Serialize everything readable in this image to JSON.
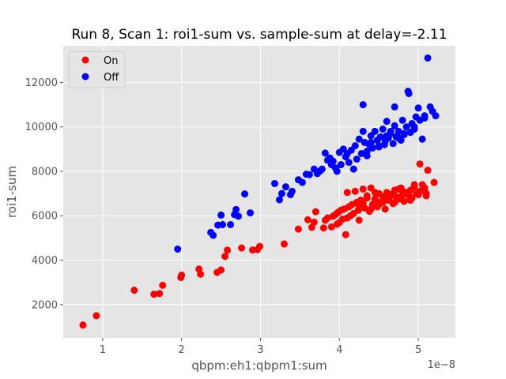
{
  "chart_data": {
    "type": "scatter",
    "title": "Run 8, Scan 1: roi1-sum vs. sample-sum at delay=-2.11",
    "xlabel": "qbpm:eh1:qbpm1:sum",
    "ylabel": "roi1-sum",
    "x_offset_text": "1e−8",
    "x_scale": 1e-08,
    "xlim": [
      0.5,
      5.47
    ],
    "ylim": [
      500,
      13650
    ],
    "xticks": [
      1,
      2,
      3,
      4,
      5
    ],
    "xtick_labels": [
      "1",
      "2",
      "3",
      "4",
      "5"
    ],
    "yticks": [
      2000,
      4000,
      6000,
      8000,
      10000,
      12000
    ],
    "ytick_labels": [
      "2000",
      "4000",
      "6000",
      "8000",
      "10000",
      "12000"
    ],
    "grid": true,
    "legend_position": "top-left",
    "colors": {
      "plot_bg": "#e5e5e5",
      "grid": "#ffffff",
      "on": "#ff0000",
      "off": "#0000ff"
    },
    "series": [
      {
        "name": "On",
        "color": "#ff0000",
        "x": [
          0.75,
          0.92,
          1.4,
          1.65,
          1.72,
          1.76,
          1.99,
          2.0,
          2.22,
          2.24,
          2.45,
          2.5,
          2.55,
          2.58,
          2.76,
          2.9,
          2.96,
          2.99,
          3.3,
          3.48,
          3.6,
          3.65,
          3.68,
          3.7,
          3.8,
          3.82,
          3.85,
          3.9,
          3.92,
          3.95,
          3.97,
          3.98,
          4.0,
          4.02,
          4.04,
          4.06,
          4.08,
          4.1,
          4.1,
          4.12,
          4.14,
          4.16,
          4.18,
          4.2,
          4.22,
          4.24,
          4.25,
          4.27,
          4.3,
          4.32,
          4.35,
          4.38,
          4.4,
          4.42,
          4.45,
          4.48,
          4.5,
          4.52,
          4.55,
          4.58,
          4.6,
          4.62,
          4.65,
          4.68,
          4.7,
          4.72,
          4.75,
          4.78,
          4.8,
          4.82,
          4.85,
          4.88,
          4.9,
          4.92,
          4.95,
          4.98,
          5.0,
          5.02,
          5.05,
          5.08,
          5.1,
          5.12,
          5.2,
          5.02,
          5.1,
          4.5,
          4.6,
          4.7,
          4.8,
          4.9,
          4.3,
          4.4,
          4.55,
          4.65,
          4.75,
          4.85,
          4.95,
          4.25,
          4.35,
          4.45
        ],
        "y": [
          1080,
          1500,
          2650,
          2470,
          2500,
          2870,
          3220,
          3330,
          3600,
          3370,
          3450,
          3560,
          4170,
          4450,
          4550,
          4460,
          4480,
          4620,
          4730,
          5400,
          5820,
          5480,
          5710,
          6180,
          5450,
          5800,
          5900,
          5500,
          5980,
          6050,
          5620,
          6150,
          5700,
          6250,
          5850,
          6300,
          5150,
          5900,
          7050,
          6400,
          6000,
          6500,
          6100,
          7100,
          6600,
          6250,
          5800,
          6700,
          6550,
          6350,
          6900,
          6200,
          7250,
          6500,
          6750,
          6400,
          7000,
          6600,
          6850,
          6300,
          7050,
          6700,
          6950,
          6550,
          7150,
          6850,
          6750,
          7250,
          6950,
          6650,
          7050,
          6900,
          7150,
          6800,
          7300,
          7000,
          6950,
          7100,
          7400,
          7250,
          6900,
          8050,
          7500,
          8330,
          7000,
          6500,
          6800,
          6600,
          7100,
          6700,
          7200,
          6300,
          6600,
          6900,
          7200,
          7000,
          7400,
          6450,
          6800,
          7050
        ]
      },
      {
        "name": "Off",
        "color": "#0000ff",
        "x": [
          1.95,
          2.37,
          2.4,
          2.46,
          2.5,
          2.52,
          2.62,
          2.67,
          2.69,
          2.72,
          2.8,
          2.87,
          3.18,
          3.24,
          3.27,
          3.32,
          3.38,
          3.4,
          3.48,
          3.53,
          3.58,
          3.62,
          3.68,
          3.72,
          3.75,
          3.78,
          3.82,
          3.85,
          3.88,
          3.9,
          3.92,
          3.95,
          3.97,
          4.0,
          4.02,
          4.05,
          4.08,
          4.1,
          4.12,
          4.15,
          4.18,
          4.2,
          4.22,
          4.25,
          4.28,
          4.3,
          4.32,
          4.35,
          4.38,
          4.4,
          4.42,
          4.45,
          4.48,
          4.5,
          4.52,
          4.55,
          4.58,
          4.6,
          4.62,
          4.65,
          4.68,
          4.7,
          4.72,
          4.75,
          4.78,
          4.8,
          4.82,
          4.85,
          4.88,
          4.9,
          4.92,
          4.95,
          4.97,
          5.0,
          5.02,
          5.05,
          5.08,
          5.12,
          5.15,
          5.18,
          5.22,
          5.08,
          4.3,
          4.7,
          4.87,
          4.57,
          4.82,
          4.95,
          4.65,
          4.4,
          4.6,
          4.75,
          4.5,
          4.35
        ],
        "y": [
          4500,
          5250,
          5120,
          5580,
          6030,
          5600,
          5600,
          6050,
          6280,
          5980,
          6980,
          6130,
          7450,
          6720,
          7000,
          7300,
          6950,
          7100,
          7620,
          7500,
          7870,
          7850,
          8100,
          7900,
          8000,
          8100,
          8820,
          8500,
          8600,
          8300,
          8450,
          8150,
          8000,
          8850,
          8300,
          9000,
          8650,
          8800,
          8400,
          8950,
          8100,
          9150,
          8550,
          9450,
          8800,
          9800,
          9300,
          8900,
          9200,
          9600,
          9050,
          9800,
          9400,
          9100,
          9550,
          9900,
          9350,
          10250,
          9500,
          9700,
          9250,
          10050,
          9550,
          9800,
          9400,
          10300,
          9650,
          10000,
          11500,
          9750,
          10150,
          9900,
          10450,
          10850,
          10300,
          9450,
          10400,
          13100,
          10900,
          10700,
          10500,
          10500,
          11000,
          10900,
          11600,
          9200,
          9700,
          10000,
          9800,
          9300,
          9600,
          9500,
          9150,
          8700
        ]
      }
    ]
  }
}
